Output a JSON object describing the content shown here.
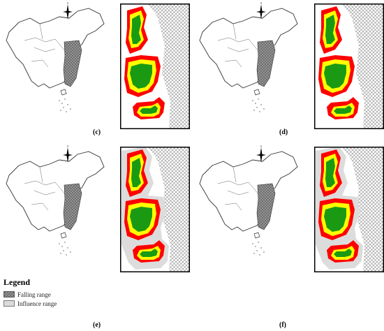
{
  "panels": [
    {
      "label": "(c)"
    },
    {
      "label": "(d)"
    },
    {
      "label": "(e)"
    },
    {
      "label": "(f)"
    }
  ],
  "legend": {
    "title": "Legend",
    "items": [
      {
        "label": "Falling range",
        "pattern": "crosshatch"
      },
      {
        "label": "Influence range",
        "pattern": "light-gray"
      }
    ]
  },
  "colors": {
    "core": "#1a9a12",
    "buffer": "#ffff00",
    "edge": "#ff0000",
    "influence": "#dcdcdc",
    "hatch": "#8a8a8a",
    "outline": "#333333"
  }
}
